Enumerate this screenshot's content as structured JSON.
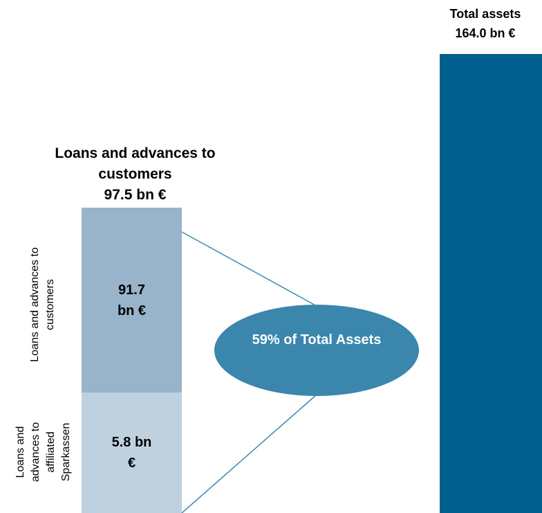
{
  "total": {
    "title": "Total assets",
    "value": "164.0 bn €"
  },
  "loans": {
    "title": "Loans and advances to customers",
    "value": "97.5 bn €",
    "segments": [
      {
        "label": "Loans and advances to customers",
        "value": "91.7 bn €"
      },
      {
        "label": "Loans and advances to affiliated Sparkassen",
        "value": "5.8 bn €"
      }
    ]
  },
  "callout": "59% of Total Assets"
}
